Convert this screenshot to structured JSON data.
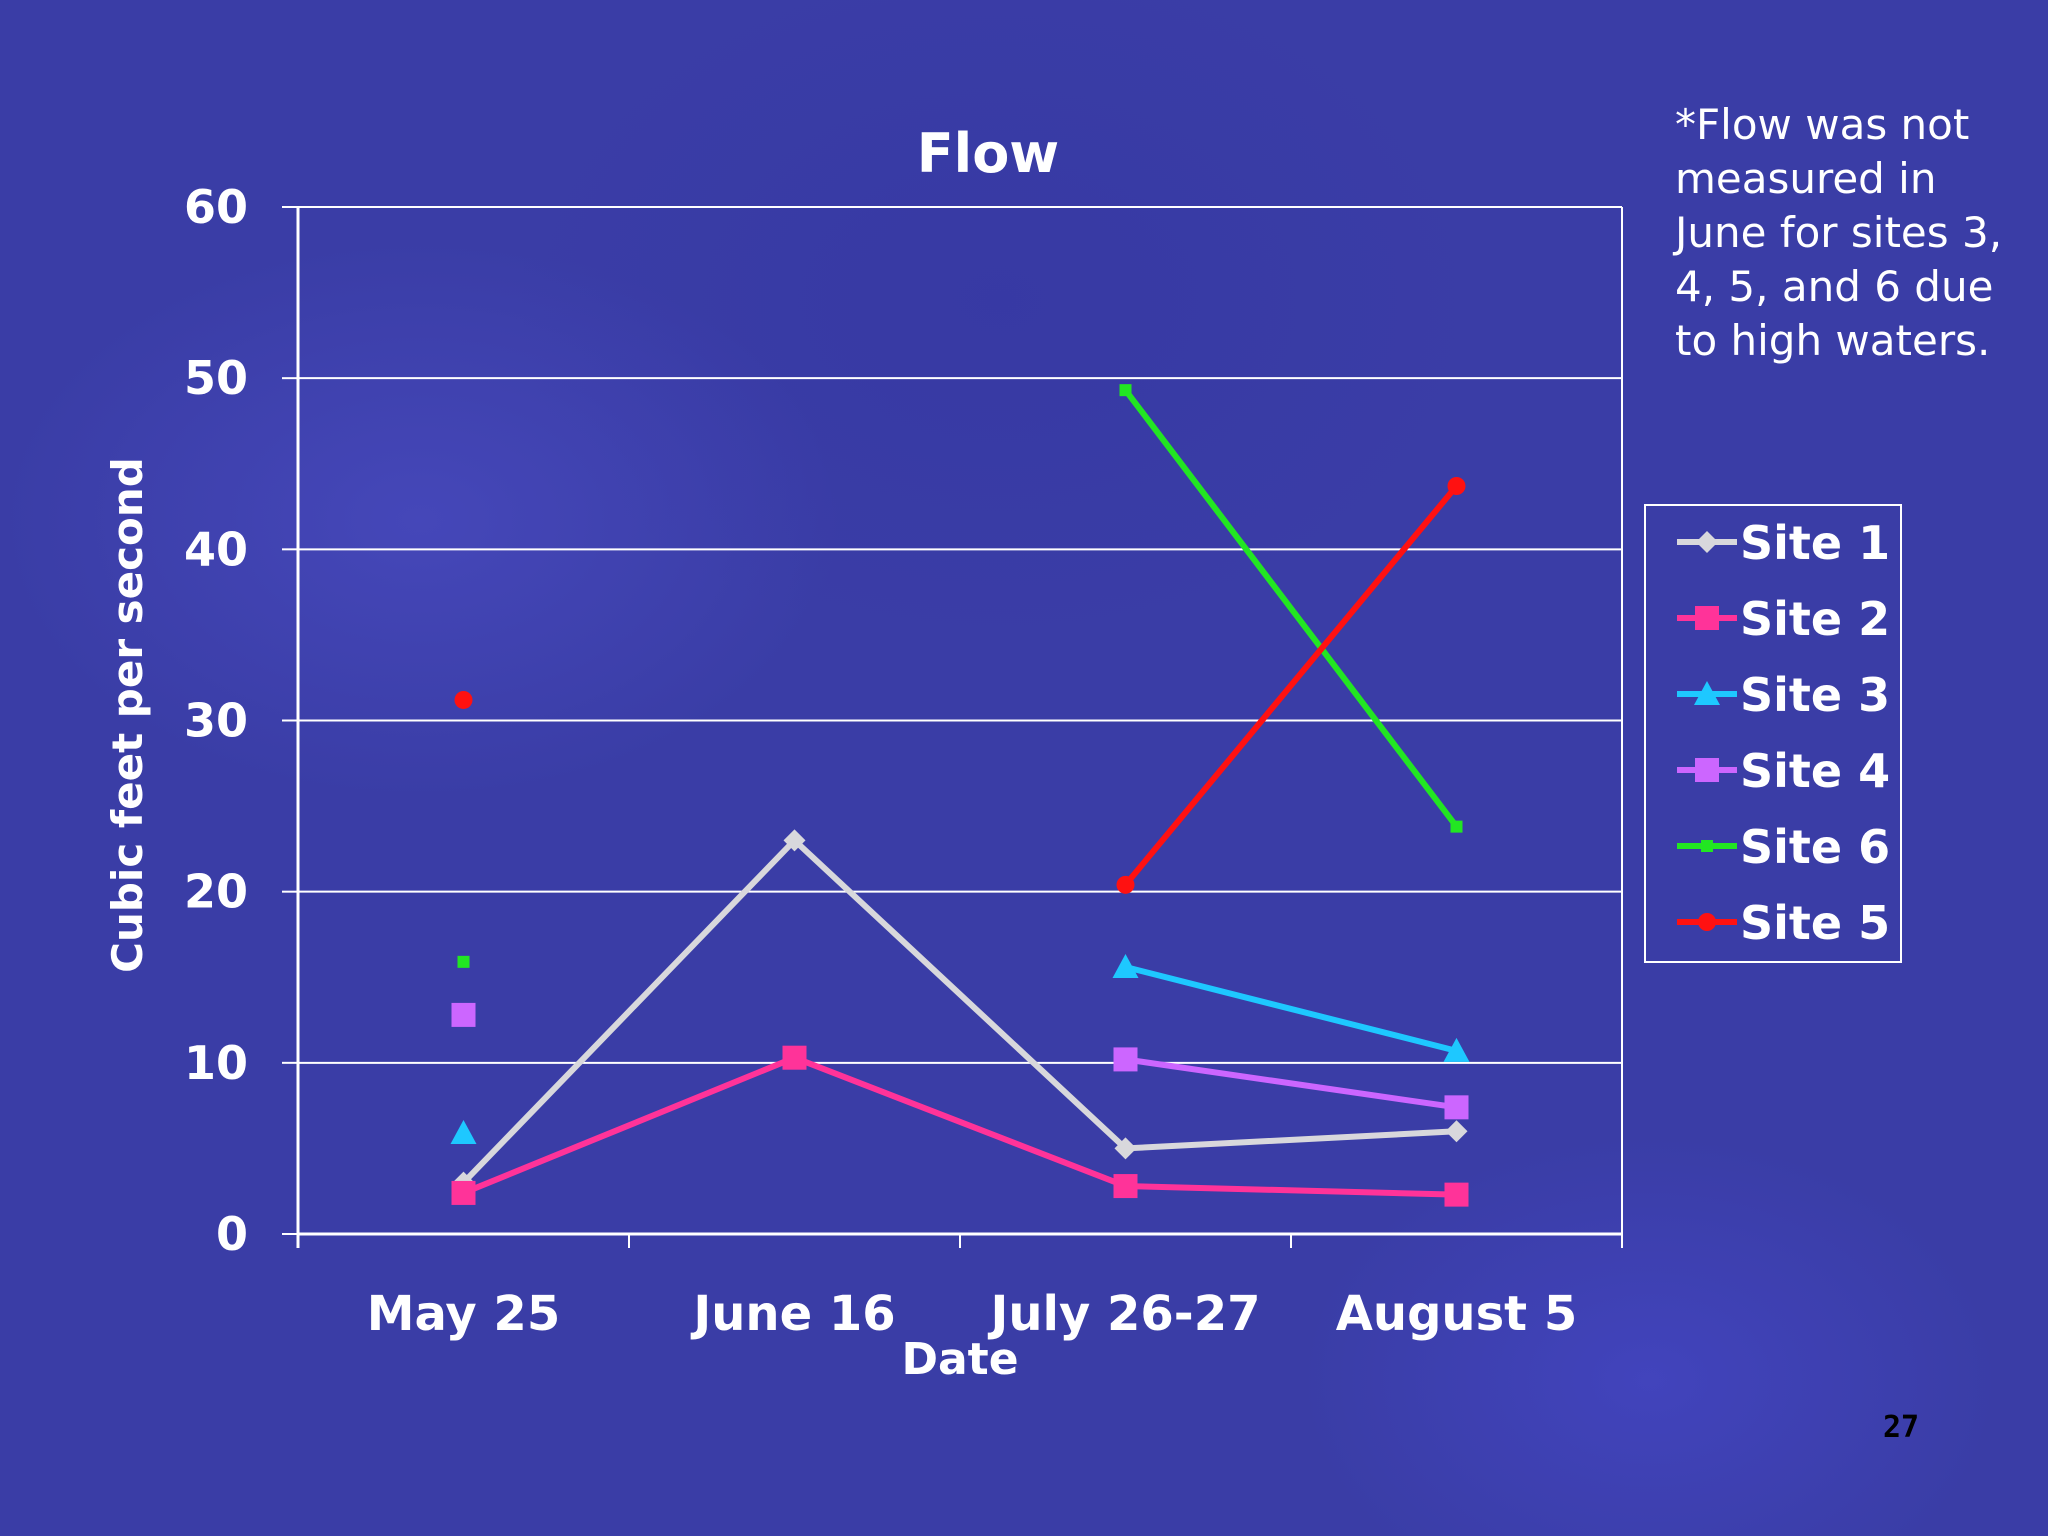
{
  "note": "*Flow was not measured in June for sites 3, 4, 5, and 6 due to high waters.",
  "page_number": "27",
  "chart_data": {
    "type": "line",
    "title": "Flow",
    "xlabel": "Date",
    "ylabel": "Cubic feet per second",
    "categories": [
      "May 25",
      "June 16",
      "July 26-27",
      "August 5"
    ],
    "ylim": [
      0,
      60
    ],
    "yticks": [
      0,
      10,
      20,
      30,
      40,
      50,
      60
    ],
    "grid": true,
    "legend_position": "right",
    "series": [
      {
        "name": "Site 1",
        "color": "#d8d8dc",
        "marker": "diamond",
        "values": [
          3,
          23,
          5,
          6
        ]
      },
      {
        "name": "Site 2",
        "color": "#ff3399",
        "marker": "square",
        "values": [
          2.4,
          10.3,
          2.8,
          2.3
        ]
      },
      {
        "name": "Site 3",
        "color": "#1ec8ff",
        "marker": "triangle",
        "values": [
          5.9,
          null,
          15.6,
          10.7
        ]
      },
      {
        "name": "Site 4",
        "color": "#cc66ff",
        "marker": "square",
        "values": [
          12.8,
          null,
          10.2,
          7.4
        ]
      },
      {
        "name": "Site 6",
        "color": "#22e622",
        "marker": "small-square",
        "values": [
          15.9,
          null,
          49.3,
          23.8
        ]
      },
      {
        "name": "Site 5",
        "color": "#ff1111",
        "marker": "circle",
        "values": [
          31.2,
          null,
          20.4,
          43.7
        ]
      }
    ]
  }
}
